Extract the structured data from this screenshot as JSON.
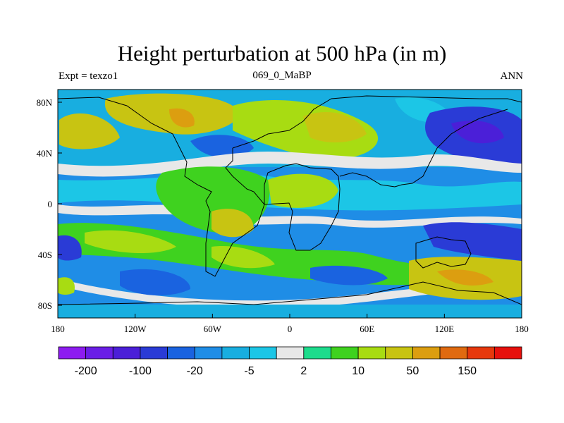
{
  "chart_data": {
    "type": "heatmap",
    "title": "Height perturbation at 500 hPa (in m)",
    "subtitle_left": "Expt = texzo1",
    "subtitle_center": "069_0_MaBP",
    "subtitle_right": "ANN",
    "x_ticks": [
      "180",
      "120W",
      "60W",
      "0",
      "60E",
      "120E",
      "180"
    ],
    "y_ticks": [
      "80N",
      "40N",
      "0",
      "40S",
      "80S"
    ],
    "xlim": [
      -180,
      180
    ],
    "ylim": [
      -90,
      90
    ],
    "colorbar": {
      "colors": [
        "#8d1cf0",
        "#6a1ee6",
        "#4b1fd8",
        "#2a3bd6",
        "#1a63e0",
        "#1f8de6",
        "#18aee0",
        "#1cc6e6",
        "#e8e8e8",
        "#1ddc8c",
        "#3fd21f",
        "#a8dc12",
        "#c8c412",
        "#dc9e10",
        "#e06a10",
        "#e6380c",
        "#e6100c"
      ],
      "labels": [
        "-200",
        "-100",
        "-20",
        "-5",
        "2",
        "10",
        "50",
        "150"
      ],
      "label_boundary_index": [
        1,
        3,
        5,
        7,
        9,
        11,
        13,
        15
      ]
    }
  }
}
